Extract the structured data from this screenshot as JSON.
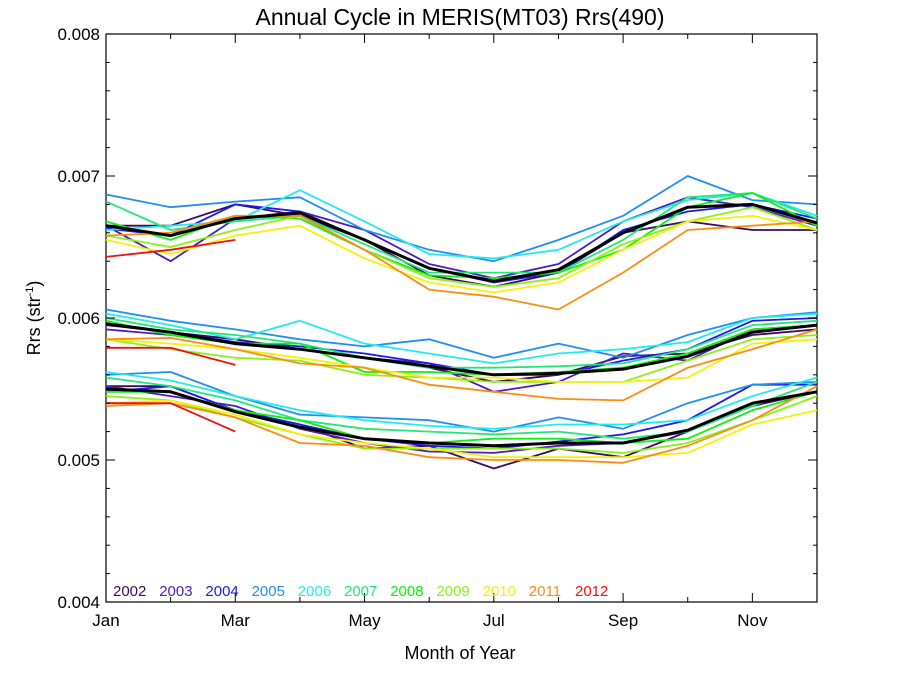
{
  "chart_data": {
    "type": "line",
    "title": "Annual Cycle in MERIS(MT03) Rrs(490)",
    "xlabel": "Month of Year",
    "ylabel": "Rrs (str",
    "ylabel_sup": "-1",
    "ylabel_close": ")",
    "xlim": [
      1,
      12
    ],
    "ylim": [
      0.004,
      0.008
    ],
    "x_ticks": [
      {
        "value": 1,
        "label": "Jan"
      },
      {
        "value": 3,
        "label": "Mar"
      },
      {
        "value": 5,
        "label": "May"
      },
      {
        "value": 7,
        "label": "Jul"
      },
      {
        "value": 9,
        "label": "Sep"
      },
      {
        "value": 11,
        "label": "Nov"
      }
    ],
    "y_ticks": [
      {
        "value": 0.004,
        "label": "0.004"
      },
      {
        "value": 0.005,
        "label": "0.005"
      },
      {
        "value": 0.006,
        "label": "0.006"
      },
      {
        "value": 0.007,
        "label": "0.007"
      },
      {
        "value": 0.008,
        "label": "0.008"
      }
    ],
    "grid": false,
    "legend_position": "bottom-left",
    "groups": [
      "upper",
      "middle",
      "lower"
    ],
    "mean_color": "#000000",
    "years": [
      {
        "name": "2002",
        "color": "#3a0a5e"
      },
      {
        "name": "2003",
        "color": "#4a1dbf"
      },
      {
        "name": "2004",
        "color": "#1a1aee"
      },
      {
        "name": "2005",
        "color": "#1f8ef0"
      },
      {
        "name": "2006",
        "color": "#23eaea"
      },
      {
        "name": "2007",
        "color": "#22e67a"
      },
      {
        "name": "2008",
        "color": "#11ee11"
      },
      {
        "name": "2009",
        "color": "#8cf01a"
      },
      {
        "name": "2010",
        "color": "#f2f20c"
      },
      {
        "name": "2011",
        "color": "#fb8c12"
      },
      {
        "name": "2012",
        "color": "#f01010"
      }
    ],
    "series": [
      {
        "group": "upper",
        "year": "2002",
        "x": [
          1,
          2,
          3,
          4,
          5,
          6,
          7,
          8,
          9,
          10,
          11,
          12
        ],
        "y": [
          0.00665,
          0.00665,
          0.0068,
          0.00672,
          0.00655,
          0.0063,
          0.00622,
          0.00632,
          0.0066,
          0.00668,
          0.00662,
          0.00662
        ]
      },
      {
        "group": "upper",
        "year": "2003",
        "x": [
          1,
          2,
          3,
          4,
          5,
          6,
          7,
          8,
          9,
          10,
          11,
          12
        ],
        "y": [
          0.00665,
          0.0064,
          0.0067,
          0.00675,
          0.00662,
          0.00638,
          0.00628,
          0.00638,
          0.00668,
          0.00685,
          0.00678,
          0.00665
        ]
      },
      {
        "group": "upper",
        "year": "2004",
        "x": [
          1,
          2,
          3,
          4,
          5,
          6,
          7,
          8,
          9,
          10,
          11,
          12
        ],
        "y": [
          0.00663,
          0.00658,
          0.0068,
          0.00675,
          0.00655,
          0.00635,
          0.00625,
          0.00632,
          0.00662,
          0.00675,
          0.0068,
          0.0067
        ]
      },
      {
        "group": "upper",
        "year": "2005",
        "x": [
          1,
          2,
          3,
          4,
          5,
          6,
          7,
          8,
          9,
          10,
          11,
          12
        ],
        "y": [
          0.00687,
          0.00678,
          0.00682,
          0.00685,
          0.00662,
          0.00648,
          0.0064,
          0.00655,
          0.00672,
          0.007,
          0.00683,
          0.0068
        ]
      },
      {
        "group": "upper",
        "year": "2006",
        "x": [
          1,
          2,
          3,
          4,
          5,
          6,
          7,
          8,
          9,
          10,
          11,
          12
        ],
        "y": [
          0.00662,
          0.00665,
          0.00668,
          0.0069,
          0.00668,
          0.00645,
          0.00642,
          0.00648,
          0.00668,
          0.00683,
          0.00688,
          0.00672
        ]
      },
      {
        "group": "upper",
        "year": "2007",
        "x": [
          1,
          2,
          3,
          4,
          5,
          6,
          7,
          8,
          9,
          10,
          11,
          12
        ],
        "y": [
          0.00682,
          0.00662,
          0.00668,
          0.00672,
          0.00652,
          0.00632,
          0.00632,
          0.00632,
          0.00655,
          0.00685,
          0.00688,
          0.0067
        ]
      },
      {
        "group": "upper",
        "year": "2008",
        "x": [
          1,
          2,
          3,
          4,
          5,
          6,
          7,
          8,
          9,
          10,
          11,
          12
        ],
        "y": [
          0.00668,
          0.00655,
          0.00672,
          0.0067,
          0.00648,
          0.0063,
          0.00628,
          0.00632,
          0.00648,
          0.00678,
          0.00688,
          0.00665
        ]
      },
      {
        "group": "upper",
        "year": "2009",
        "x": [
          1,
          2,
          3,
          4,
          5,
          6,
          7,
          8,
          9,
          10,
          11,
          12
        ],
        "y": [
          0.00658,
          0.0065,
          0.00662,
          0.00672,
          0.00648,
          0.00628,
          0.00622,
          0.00628,
          0.00652,
          0.00668,
          0.00678,
          0.00662
        ]
      },
      {
        "group": "upper",
        "year": "2010",
        "x": [
          1,
          2,
          3,
          4,
          5,
          6,
          7,
          8,
          9,
          10,
          11,
          12
        ],
        "y": [
          0.00655,
          0.00645,
          0.00658,
          0.00665,
          0.00642,
          0.00625,
          0.00618,
          0.00625,
          0.00648,
          0.00668,
          0.00672,
          0.00662
        ]
      },
      {
        "group": "upper",
        "year": "2011",
        "x": [
          1,
          2,
          3,
          4,
          5,
          6,
          7,
          8,
          9,
          10,
          11,
          12
        ],
        "y": [
          0.00658,
          0.0066,
          0.00672,
          0.00672,
          0.00648,
          0.0062,
          0.00615,
          0.00606,
          0.00632,
          0.00662,
          0.00665,
          0.00668
        ]
      },
      {
        "group": "upper",
        "year": "2012",
        "x": [
          1,
          2,
          3
        ],
        "y": [
          0.00643,
          0.00648,
          0.00655
        ]
      },
      {
        "group": "upper",
        "year": "mean",
        "x": [
          1,
          2,
          3,
          4,
          5,
          6,
          7,
          8,
          9,
          10,
          11,
          12
        ],
        "y": [
          0.00665,
          0.00658,
          0.0067,
          0.00674,
          0.00655,
          0.00635,
          0.00626,
          0.00634,
          0.0066,
          0.00678,
          0.0068,
          0.00667
        ]
      },
      {
        "group": "middle",
        "year": "2002",
        "x": [
          1,
          2,
          3,
          4,
          5,
          6,
          7,
          8,
          9,
          10,
          11,
          12
        ],
        "y": [
          0.00595,
          0.0059,
          0.00585,
          0.00578,
          0.00572,
          0.00565,
          0.00555,
          0.0056,
          0.00573,
          0.00575,
          0.00588,
          0.00592
        ]
      },
      {
        "group": "middle",
        "year": "2003",
        "x": [
          1,
          2,
          3,
          4,
          5,
          6,
          7,
          8,
          9,
          10,
          11,
          12
        ],
        "y": [
          0.00592,
          0.00588,
          0.00582,
          0.00578,
          0.00572,
          0.00568,
          0.00548,
          0.00555,
          0.00575,
          0.0057,
          0.00592,
          0.00595
        ]
      },
      {
        "group": "middle",
        "year": "2004",
        "x": [
          1,
          2,
          3,
          4,
          5,
          6,
          7,
          8,
          9,
          10,
          11,
          12
        ],
        "y": [
          0.00596,
          0.0059,
          0.00583,
          0.0058,
          0.00575,
          0.00568,
          0.0056,
          0.0056,
          0.0057,
          0.00578,
          0.00598,
          0.006
        ]
      },
      {
        "group": "middle",
        "year": "2005",
        "x": [
          1,
          2,
          3,
          4,
          5,
          6,
          7,
          8,
          9,
          10,
          11,
          12
        ],
        "y": [
          0.00606,
          0.00598,
          0.00592,
          0.00585,
          0.0058,
          0.00585,
          0.00572,
          0.00582,
          0.00572,
          0.00588,
          0.006,
          0.00604
        ]
      },
      {
        "group": "middle",
        "year": "2006",
        "x": [
          1,
          2,
          3,
          4,
          5,
          6,
          7,
          8,
          9,
          10,
          11,
          12
        ],
        "y": [
          0.00603,
          0.00595,
          0.00585,
          0.00598,
          0.00582,
          0.00575,
          0.00568,
          0.00575,
          0.00578,
          0.00583,
          0.006,
          0.00603
        ]
      },
      {
        "group": "middle",
        "year": "2007",
        "x": [
          1,
          2,
          3,
          4,
          5,
          6,
          7,
          8,
          9,
          10,
          11,
          12
        ],
        "y": [
          0.006,
          0.00592,
          0.00588,
          0.00582,
          0.00572,
          0.00565,
          0.00565,
          0.00566,
          0.00568,
          0.00578,
          0.00595,
          0.00598
        ]
      },
      {
        "group": "middle",
        "year": "2008",
        "x": [
          1,
          2,
          3,
          4,
          5,
          6,
          7,
          8,
          9,
          10,
          11,
          12
        ],
        "y": [
          0.00598,
          0.00588,
          0.00582,
          0.00582,
          0.00562,
          0.00562,
          0.0056,
          0.00562,
          0.00565,
          0.00575,
          0.00592,
          0.00595
        ]
      },
      {
        "group": "middle",
        "year": "2009",
        "x": [
          1,
          2,
          3,
          4,
          5,
          6,
          7,
          8,
          9,
          10,
          11,
          12
        ],
        "y": [
          0.00585,
          0.00578,
          0.00572,
          0.0057,
          0.0056,
          0.00558,
          0.00555,
          0.00555,
          0.00555,
          0.0057,
          0.00585,
          0.00588
        ]
      },
      {
        "group": "middle",
        "year": "2010",
        "x": [
          1,
          2,
          3,
          4,
          5,
          6,
          7,
          8,
          9,
          10,
          11,
          12
        ],
        "y": [
          0.00585,
          0.00582,
          0.00578,
          0.00572,
          0.00565,
          0.00558,
          0.00558,
          0.00555,
          0.00555,
          0.00558,
          0.00582,
          0.00585
        ]
      },
      {
        "group": "middle",
        "year": "2011",
        "x": [
          1,
          2,
          3,
          4,
          5,
          6,
          7,
          8,
          9,
          10,
          11,
          12
        ],
        "y": [
          0.00585,
          0.00586,
          0.00578,
          0.00568,
          0.00565,
          0.00553,
          0.00548,
          0.00543,
          0.00542,
          0.00565,
          0.00578,
          0.00592
        ]
      },
      {
        "group": "middle",
        "year": "2012",
        "x": [
          1,
          2,
          3
        ],
        "y": [
          0.00579,
          0.00579,
          0.00567
        ]
      },
      {
        "group": "middle",
        "year": "mean",
        "x": [
          1,
          2,
          3,
          4,
          5,
          6,
          7,
          8,
          9,
          10,
          11,
          12
        ],
        "y": [
          0.00596,
          0.0059,
          0.00582,
          0.00578,
          0.00572,
          0.00566,
          0.0056,
          0.00561,
          0.00564,
          0.00573,
          0.0059,
          0.00595
        ]
      },
      {
        "group": "lower",
        "year": "2002",
        "x": [
          1,
          2,
          3,
          4,
          5,
          6,
          7,
          8,
          9,
          10,
          11,
          12
        ],
        "y": [
          0.00552,
          0.00552,
          0.00535,
          0.00525,
          0.00508,
          0.0051,
          0.00494,
          0.00508,
          0.00502,
          0.0052,
          0.00538,
          0.00548
        ]
      },
      {
        "group": "lower",
        "year": "2003",
        "x": [
          1,
          2,
          3,
          4,
          5,
          6,
          7,
          8,
          9,
          10,
          11,
          12
        ],
        "y": [
          0.00552,
          0.00545,
          0.00538,
          0.00522,
          0.00512,
          0.00506,
          0.00505,
          0.0051,
          0.00512,
          0.0052,
          0.0054,
          0.00548
        ]
      },
      {
        "group": "lower",
        "year": "2004",
        "x": [
          1,
          2,
          3,
          4,
          5,
          6,
          7,
          8,
          9,
          10,
          11,
          12
        ],
        "y": [
          0.00548,
          0.00552,
          0.00535,
          0.00525,
          0.00515,
          0.0051,
          0.00508,
          0.00513,
          0.00518,
          0.00528,
          0.00553,
          0.00553
        ]
      },
      {
        "group": "lower",
        "year": "2005",
        "x": [
          1,
          2,
          3,
          4,
          5,
          6,
          7,
          8,
          9,
          10,
          11,
          12
        ],
        "y": [
          0.0056,
          0.00562,
          0.00545,
          0.00532,
          0.0053,
          0.00528,
          0.0052,
          0.0053,
          0.00522,
          0.0054,
          0.00553,
          0.00555
        ]
      },
      {
        "group": "lower",
        "year": "2006",
        "x": [
          1,
          2,
          3,
          4,
          5,
          6,
          7,
          8,
          9,
          10,
          11,
          12
        ],
        "y": [
          0.00562,
          0.00556,
          0.00545,
          0.00535,
          0.00528,
          0.00524,
          0.00522,
          0.00525,
          0.00525,
          0.00528,
          0.00545,
          0.00558
        ]
      },
      {
        "group": "lower",
        "year": "2007",
        "x": [
          1,
          2,
          3,
          4,
          5,
          6,
          7,
          8,
          9,
          10,
          11,
          12
        ],
        "y": [
          0.00558,
          0.00552,
          0.00542,
          0.00528,
          0.00522,
          0.0052,
          0.00518,
          0.0052,
          0.00515,
          0.0052,
          0.00538,
          0.00555
        ]
      },
      {
        "group": "lower",
        "year": "2008",
        "x": [
          1,
          2,
          3,
          4,
          5,
          6,
          7,
          8,
          9,
          10,
          11,
          12
        ],
        "y": [
          0.00548,
          0.00548,
          0.00535,
          0.00528,
          0.00515,
          0.00512,
          0.00515,
          0.00515,
          0.00512,
          0.00515,
          0.00535,
          0.00548
        ]
      },
      {
        "group": "lower",
        "year": "2009",
        "x": [
          1,
          2,
          3,
          4,
          5,
          6,
          7,
          8,
          9,
          10,
          11,
          12
        ],
        "y": [
          0.00545,
          0.00542,
          0.0053,
          0.00518,
          0.00508,
          0.00508,
          0.00508,
          0.00508,
          0.00505,
          0.00512,
          0.00528,
          0.00545
        ]
      },
      {
        "group": "lower",
        "year": "2010",
        "x": [
          1,
          2,
          3,
          4,
          5,
          6,
          7,
          8,
          9,
          10,
          11,
          12
        ],
        "y": [
          0.0054,
          0.00542,
          0.00532,
          0.00518,
          0.00512,
          0.00508,
          0.00502,
          0.00502,
          0.00502,
          0.00505,
          0.00525,
          0.00535
        ]
      },
      {
        "group": "lower",
        "year": "2011",
        "x": [
          1,
          2,
          3,
          4,
          5,
          6,
          7,
          8,
          9,
          10,
          11,
          12
        ],
        "y": [
          0.00538,
          0.0054,
          0.0053,
          0.00512,
          0.0051,
          0.00502,
          0.005,
          0.005,
          0.00498,
          0.0051,
          0.00528,
          0.00552
        ]
      },
      {
        "group": "lower",
        "year": "2012",
        "x": [
          1,
          2,
          3
        ],
        "y": [
          0.0054,
          0.0054,
          0.0052
        ]
      },
      {
        "group": "lower",
        "year": "mean",
        "x": [
          1,
          2,
          3,
          4,
          5,
          6,
          7,
          8,
          9,
          10,
          11,
          12
        ],
        "y": [
          0.0055,
          0.00548,
          0.00534,
          0.00523,
          0.00515,
          0.00512,
          0.0051,
          0.00512,
          0.00512,
          0.00521,
          0.0054,
          0.00548
        ]
      }
    ]
  }
}
